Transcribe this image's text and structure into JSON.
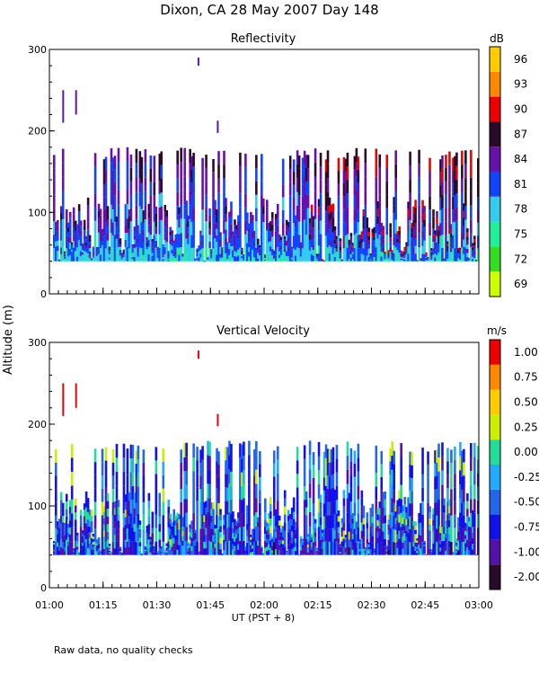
{
  "figure": {
    "title": "Dixon, CA 28 May 2007  Day 148",
    "xlabel": "UT  (PST + 8)",
    "ylabel": "Altitude (m)",
    "footnote": "Raw data, no quality checks"
  },
  "chart_data": [
    {
      "type": "heatmap",
      "title": "Reflectivity",
      "ylabel": "Altitude (m)",
      "xlabel": "UT  (PST + 8)",
      "x_range": [
        "01:00",
        "03:00"
      ],
      "x_ticks": [
        "01:00",
        "01:15",
        "01:30",
        "01:45",
        "02:00",
        "02:15",
        "02:30",
        "02:45",
        "03:00"
      ],
      "ylim": [
        0,
        300
      ],
      "y_ticks": [
        0,
        100,
        200,
        300
      ],
      "colorbar": {
        "unit": "dB",
        "labels": [
          "69",
          "72",
          "75",
          "78",
          "81",
          "84",
          "87",
          "90",
          "93",
          "96"
        ],
        "colors": [
          "#ccff00",
          "#33dd22",
          "#22ee99",
          "#33ccee",
          "#1144ff",
          "#6611aa",
          "#2a0a2a",
          "#ee0000",
          "#ff8800",
          "#ffcc00"
        ]
      },
      "data_coverage": {
        "lowest_altitude_m": 40,
        "typical_top_altitude_m": 180,
        "max_echo_altitude_m": 280
      }
    },
    {
      "type": "heatmap",
      "title": "Vertical Velocity",
      "ylabel": "Altitude (m)",
      "xlabel": "UT  (PST + 8)",
      "x_range": [
        "01:00",
        "03:00"
      ],
      "x_ticks": [
        "01:00",
        "01:15",
        "01:30",
        "01:45",
        "02:00",
        "02:15",
        "02:30",
        "02:45",
        "03:00"
      ],
      "ylim": [
        0,
        300
      ],
      "y_ticks": [
        0,
        100,
        200,
        300
      ],
      "colorbar": {
        "unit": "m/s",
        "labels": [
          "-2.00",
          "-1.00",
          "-0.75",
          "-0.50",
          "-0.25",
          "0.00",
          "0.25",
          "0.50",
          "0.75",
          "1.00"
        ],
        "colors": [
          "#2a0a2a",
          "#5511aa",
          "#1111ee",
          "#2266ee",
          "#22aaff",
          "#22dd99",
          "#ccee00",
          "#ffcc00",
          "#ff8800",
          "#ee0000"
        ]
      },
      "data_coverage": {
        "lowest_altitude_m": 40,
        "typical_top_altitude_m": 180,
        "max_echo_altitude_m": 280
      }
    }
  ]
}
